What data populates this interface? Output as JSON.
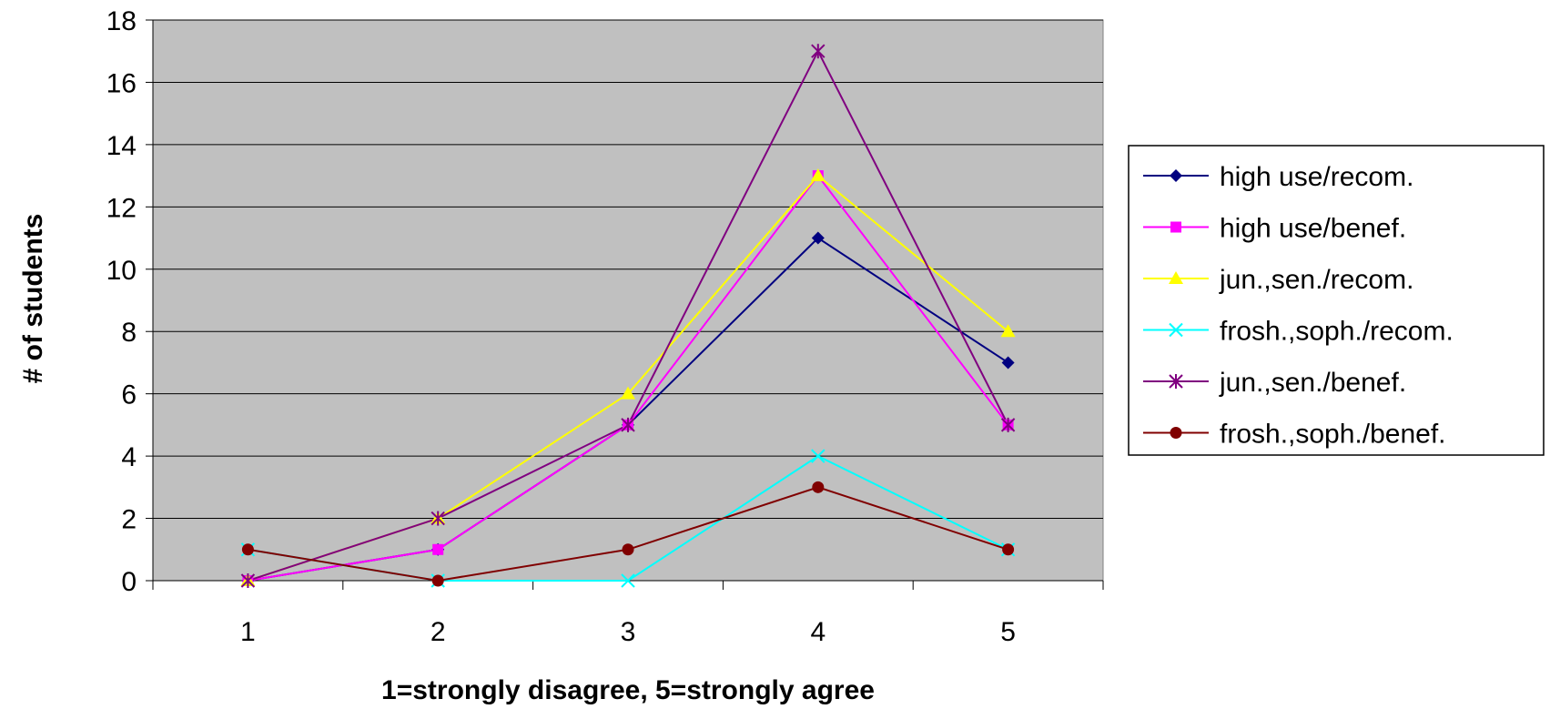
{
  "chart_data": {
    "type": "line",
    "title": "",
    "xlabel": "1=strongly disagree, 5=strongly agree",
    "ylabel": "# of students",
    "x": [
      1,
      2,
      3,
      4,
      5
    ],
    "ylim": [
      0,
      18
    ],
    "yticks": [
      0,
      2,
      4,
      6,
      8,
      10,
      12,
      14,
      16,
      18
    ],
    "grid": "horizontal",
    "plot_background": "#C0C0C0",
    "legend_position": "right",
    "series": [
      {
        "name": "high use/recom.",
        "values": [
          0,
          1,
          5,
          11,
          7
        ],
        "color": "#000080",
        "marker": "diamond"
      },
      {
        "name": "high use/benef.",
        "values": [
          0,
          1,
          5,
          13,
          5
        ],
        "color": "#FF00FF",
        "marker": "square"
      },
      {
        "name": "jun.,sen./recom.",
        "values": [
          0,
          2,
          6,
          13,
          8
        ],
        "color": "#FFFF00",
        "marker": "triangle"
      },
      {
        "name": "frosh.,soph./recom.",
        "values": [
          1,
          0,
          0,
          4,
          1
        ],
        "color": "#00FFFF",
        "marker": "x"
      },
      {
        "name": "jun.,sen./benef.",
        "values": [
          0,
          2,
          5,
          17,
          5
        ],
        "color": "#800080",
        "marker": "star"
      },
      {
        "name": "frosh.,soph./benef.",
        "values": [
          1,
          0,
          1,
          3,
          1
        ],
        "color": "#800000",
        "marker": "circle"
      }
    ]
  }
}
